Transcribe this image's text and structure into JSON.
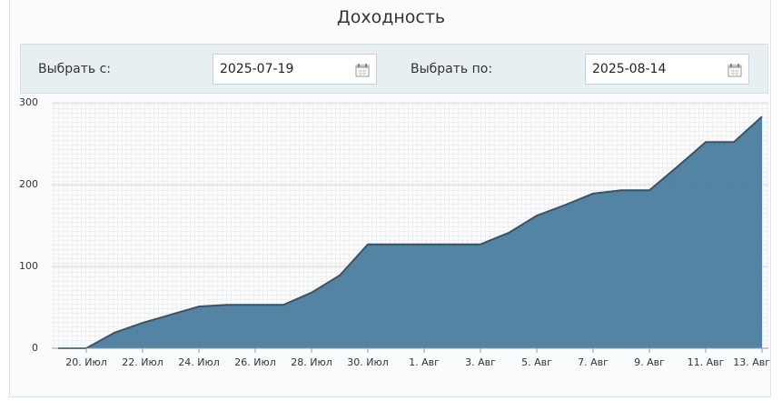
{
  "header": {
    "title": "Доходность"
  },
  "filters": {
    "from_label": "Выбрать с:",
    "from_value": "2025-07-19",
    "to_label": "Выбрать по:",
    "to_value": "2025-08-14"
  },
  "chart_data": {
    "type": "area",
    "categories": [
      null,
      "20. Июл",
      null,
      "22. Июл",
      null,
      "24. Июл",
      null,
      "26. Июл",
      null,
      "28. Июл",
      null,
      "30. Июл",
      null,
      "1. Авг",
      null,
      "3. Авг",
      null,
      "5. Авг",
      null,
      "7. Авг",
      null,
      "9. Авг",
      null,
      "11. Авг",
      null,
      "13. Авг"
    ],
    "values": [
      0,
      0,
      19,
      31,
      41,
      51,
      53,
      53,
      53,
      68,
      89,
      127,
      127,
      127,
      127,
      127,
      141,
      162,
      175,
      189,
      193,
      193,
      222,
      252,
      252,
      283
    ],
    "color": "#4a7d9e",
    "line_color": "#2b5876",
    "ylim": [
      0,
      300
    ],
    "yticks": [
      0,
      100,
      200,
      300
    ],
    "grid": true
  }
}
